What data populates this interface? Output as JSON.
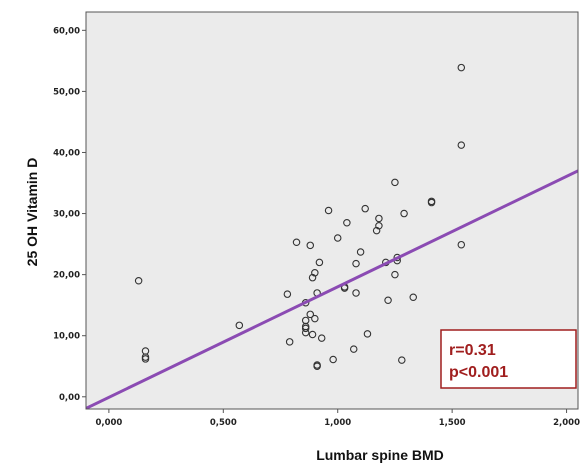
{
  "chart_data": {
    "type": "scatter",
    "xlabel": "Lumbar spine BMD",
    "ylabel": "25 OH Vitamin D",
    "xlim": [
      -0.1,
      2.05
    ],
    "ylim": [
      -2,
      63
    ],
    "x_ticks": [
      "0,000",
      "0,500",
      "1,000",
      "1,500",
      "2,000"
    ],
    "y_ticks": [
      "0,00",
      "10,00",
      "20,00",
      "30,00",
      "40,00",
      "50,00",
      "60,00"
    ],
    "grid": false,
    "annotation": [
      "r=0.31",
      "p<0.001"
    ],
    "regression_line": {
      "x": [
        -0.1,
        2.05
      ],
      "y": [
        -1.9,
        37.0
      ]
    },
    "points": [
      {
        "x": 0.13,
        "y": 19.0
      },
      {
        "x": 0.16,
        "y": 7.5
      },
      {
        "x": 0.16,
        "y": 6.5
      },
      {
        "x": 0.16,
        "y": 6.2
      },
      {
        "x": 0.57,
        "y": 11.7
      },
      {
        "x": 0.78,
        "y": 16.8
      },
      {
        "x": 0.79,
        "y": 9.0
      },
      {
        "x": 0.82,
        "y": 25.3
      },
      {
        "x": 0.86,
        "y": 15.4
      },
      {
        "x": 0.86,
        "y": 12.5
      },
      {
        "x": 0.86,
        "y": 11.5
      },
      {
        "x": 0.86,
        "y": 11.2
      },
      {
        "x": 0.86,
        "y": 10.5
      },
      {
        "x": 0.88,
        "y": 24.8
      },
      {
        "x": 0.88,
        "y": 13.5
      },
      {
        "x": 0.89,
        "y": 10.2
      },
      {
        "x": 0.89,
        "y": 19.5
      },
      {
        "x": 0.9,
        "y": 20.3
      },
      {
        "x": 0.9,
        "y": 12.8
      },
      {
        "x": 0.91,
        "y": 5.2
      },
      {
        "x": 0.91,
        "y": 5.0
      },
      {
        "x": 0.91,
        "y": 17.0
      },
      {
        "x": 0.92,
        "y": 22.0
      },
      {
        "x": 0.93,
        "y": 9.6
      },
      {
        "x": 0.96,
        "y": 30.5
      },
      {
        "x": 0.98,
        "y": 6.1
      },
      {
        "x": 1.0,
        "y": 26.0
      },
      {
        "x": 1.03,
        "y": 18.0
      },
      {
        "x": 1.03,
        "y": 17.8
      },
      {
        "x": 1.04,
        "y": 28.5
      },
      {
        "x": 1.07,
        "y": 7.8
      },
      {
        "x": 1.08,
        "y": 21.8
      },
      {
        "x": 1.08,
        "y": 17.0
      },
      {
        "x": 1.1,
        "y": 23.7
      },
      {
        "x": 1.12,
        "y": 30.8
      },
      {
        "x": 1.13,
        "y": 10.3
      },
      {
        "x": 1.17,
        "y": 27.2
      },
      {
        "x": 1.18,
        "y": 28.0
      },
      {
        "x": 1.18,
        "y": 29.2
      },
      {
        "x": 1.21,
        "y": 22.0
      },
      {
        "x": 1.22,
        "y": 15.8
      },
      {
        "x": 1.25,
        "y": 35.1
      },
      {
        "x": 1.25,
        "y": 20.0
      },
      {
        "x": 1.26,
        "y": 22.8
      },
      {
        "x": 1.26,
        "y": 22.3
      },
      {
        "x": 1.28,
        "y": 6.0
      },
      {
        "x": 1.29,
        "y": 30.0
      },
      {
        "x": 1.33,
        "y": 16.3
      },
      {
        "x": 1.41,
        "y": 32.0
      },
      {
        "x": 1.41,
        "y": 31.8
      },
      {
        "x": 1.54,
        "y": 53.9
      },
      {
        "x": 1.54,
        "y": 41.2
      },
      {
        "x": 1.54,
        "y": 24.9
      }
    ]
  },
  "colors": {
    "plot_background": "#ebebeb",
    "regression_line": "#8b4bb3",
    "point_stroke": "#333333",
    "annotation_text": "#a01e1e",
    "annotation_border": "#a01e1e"
  }
}
